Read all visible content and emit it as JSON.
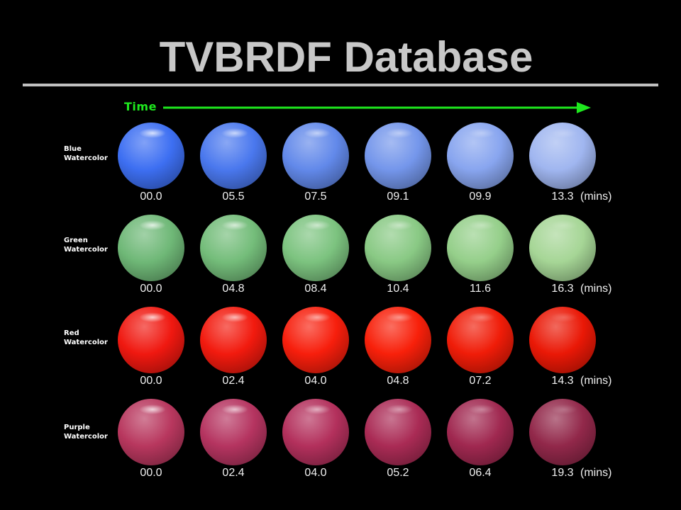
{
  "title": "TVBRDF Database",
  "time_label": "Time",
  "unit_label": "(mins)",
  "colors": {
    "background": "#000000",
    "title": "#c8c8c8",
    "rule": "#c0c0c0",
    "time_arrow": "#1ee81e"
  },
  "rows": [
    {
      "label_line1": "Blue",
      "label_line2": "Watercolor",
      "times": [
        "00.0",
        "05.5",
        "07.5",
        "09.1",
        "09.9",
        "13.3"
      ],
      "colors": [
        "#3d6ff2",
        "#4a78ee",
        "#6289ea",
        "#7496eb",
        "#88a5ef",
        "#a0b6f0"
      ]
    },
    {
      "label_line1": "Green",
      "label_line2": "Watercolor",
      "times": [
        "00.0",
        "04.8",
        "08.4",
        "10.4",
        "11.6",
        "16.3"
      ],
      "colors": [
        "#6fb877",
        "#74bd7a",
        "#7cc37f",
        "#89c984",
        "#95cf8a",
        "#a6d696"
      ]
    },
    {
      "label_line1": "Red",
      "label_line2": "Watercolor",
      "times": [
        "00.0",
        "02.4",
        "04.0",
        "04.8",
        "07.2",
        "14.3"
      ],
      "colors": [
        "#f01810",
        "#f21a0e",
        "#f71e0c",
        "#f8200a",
        "#f01c08",
        "#ea1806"
      ]
    },
    {
      "label_line1": "Purple",
      "label_line2": "Watercolor",
      "times": [
        "00.0",
        "02.4",
        "04.0",
        "05.2",
        "06.4",
        "19.3"
      ],
      "colors": [
        "#b8375e",
        "#b53460",
        "#b3305c",
        "#aa2b55",
        "#a02850",
        "#92284a"
      ]
    }
  ]
}
